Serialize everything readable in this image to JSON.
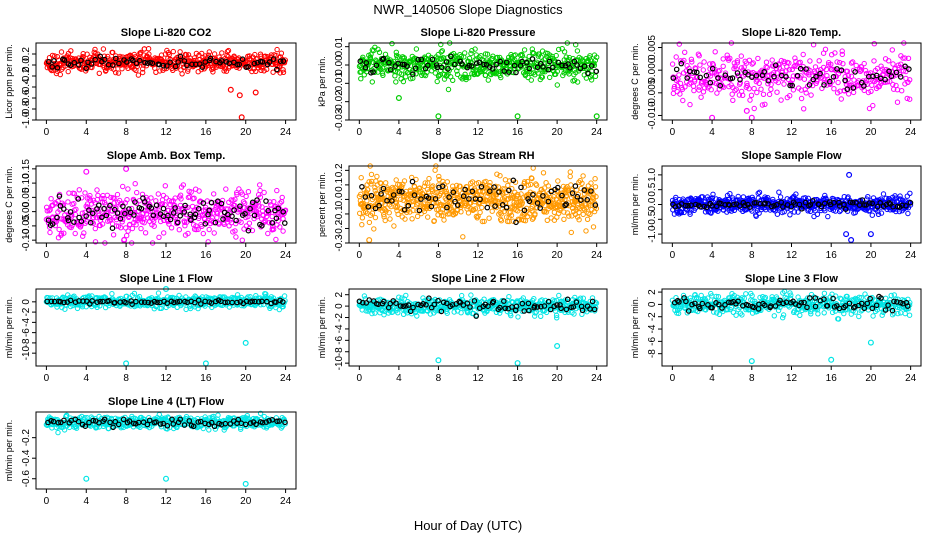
{
  "figure": {
    "title": "NWR_140506  Slope Diagnostics",
    "xlabel": "Hour of Day (UTC)"
  },
  "chart_data": [
    {
      "type": "scatter",
      "title": "Slope Li-820 CO2",
      "ylabel": "Licor ppm per min.",
      "color": "#ff0000",
      "xlim": [
        0,
        24
      ],
      "ylim": [
        -1.0,
        0.4
      ],
      "xticks": [
        0,
        4,
        8,
        12,
        16,
        20,
        24
      ],
      "yticks": [
        -1.0,
        -0.8,
        -0.6,
        -0.4,
        -0.2,
        0.0,
        0.2
      ],
      "ytick_labels": [
        "-1.0",
        "-0.8",
        "-0.6",
        "-0.4",
        "-0.2",
        "0.0",
        "0.2"
      ],
      "center": 0.05,
      "spread": 0.09,
      "black_spread": 0.05,
      "n": 520,
      "nblack": 70,
      "outliers": [
        {
          "x": 19.6,
          "y": -0.95
        },
        {
          "x": 19.4,
          "y": -0.55
        },
        {
          "x": 18.5,
          "y": -0.45
        },
        {
          "x": 21.0,
          "y": -0.5
        }
      ]
    },
    {
      "type": "scatter",
      "title": "Slope Li-820 Pressure",
      "ylabel": "kPa per min.",
      "color": "#00cc00",
      "xlim": [
        0,
        24
      ],
      "ylim": [
        -0.03,
        0.012
      ],
      "xticks": [
        0,
        4,
        8,
        12,
        16,
        20,
        24
      ],
      "yticks": [
        -0.03,
        -0.02,
        -0.01,
        0.0,
        0.01
      ],
      "ytick_labels": [
        "-0.03",
        "-0.02",
        "-0.01",
        "0.00",
        "0.01"
      ],
      "center": 0.0,
      "spread": 0.004,
      "black_spread": 0.002,
      "n": 560,
      "nblack": 70,
      "outliers": [
        {
          "x": 8.0,
          "y": -0.028
        },
        {
          "x": 16.0,
          "y": -0.028
        },
        {
          "x": 24.0,
          "y": -0.028
        },
        {
          "x": 4.0,
          "y": -0.018
        }
      ]
    },
    {
      "type": "scatter",
      "title": "Slope Li-820 Temp.",
      "ylabel": "degrees C per min.",
      "color": "#ff00ff",
      "xlim": [
        0,
        24
      ],
      "ylim": [
        -0.011,
        0.006
      ],
      "xticks": [
        0,
        4,
        8,
        12,
        16,
        20,
        24
      ],
      "yticks": [
        -0.01,
        -0.005,
        0.0,
        0.005
      ],
      "ytick_labels": [
        "-0.010",
        "-0.005",
        "0.000",
        "0.005"
      ],
      "center": -0.0015,
      "spread": 0.0028,
      "black_spread": 0.0015,
      "n": 420,
      "nblack": 60,
      "outliers": [
        {
          "x": 4.0,
          "y": -0.0105
        },
        {
          "x": 8.0,
          "y": -0.0105
        },
        {
          "x": 7.5,
          "y": -0.009
        }
      ]
    },
    {
      "type": "scatter",
      "title": "Slope Amb. Box Temp.",
      "ylabel": "degrees C per min.",
      "color": "#ff00ff",
      "xlim": [
        0,
        24
      ],
      "ylim": [
        -0.11,
        0.16
      ],
      "xticks": [
        0,
        4,
        8,
        12,
        16,
        20,
        24
      ],
      "yticks": [
        -0.1,
        -0.05,
        0.0,
        0.05,
        0.1,
        0.15
      ],
      "ytick_labels": [
        "-0.10",
        "-0.05",
        "0.00",
        "0.05",
        "0.10",
        "0.15"
      ],
      "center": 0.0,
      "spread": 0.04,
      "black_spread": 0.03,
      "n": 520,
      "nblack": 90,
      "outliers": [
        {
          "x": 7.8,
          "y": -0.1
        },
        {
          "x": 8.0,
          "y": 0.15
        },
        {
          "x": 4.0,
          "y": 0.14
        }
      ]
    },
    {
      "type": "scatter",
      "title": "Slope Gas Stream RH",
      "ylabel": "percent per min.",
      "color": "#ff9900",
      "xlim": [
        0,
        24
      ],
      "ylim": [
        -0.3,
        0.23
      ],
      "xticks": [
        0,
        4,
        8,
        12,
        16,
        20,
        24
      ],
      "yticks": [
        -0.3,
        -0.2,
        -0.1,
        0.0,
        0.1,
        0.2
      ],
      "ytick_labels": [
        "-0.3",
        "-0.2",
        "-0.1",
        "0.0",
        "0.1",
        "0.2"
      ],
      "center": 0.0,
      "spread": 0.08,
      "black_spread": 0.05,
      "n": 700,
      "nblack": 70,
      "outliers": [
        {
          "x": 1.0,
          "y": -0.28
        }
      ]
    },
    {
      "type": "scatter",
      "title": "Slope Sample Flow",
      "ylabel": "ml/min per min.",
      "color": "#0000ff",
      "xlim": [
        0,
        24
      ],
      "ylim": [
        -1.3,
        1.3
      ],
      "xticks": [
        0,
        4,
        8,
        12,
        16,
        20,
        24
      ],
      "yticks": [
        -1.0,
        -0.5,
        0.0,
        0.5,
        1.0
      ],
      "ytick_labels": [
        "-1.0",
        "-0.5",
        "0.0",
        "0.5",
        "1.0"
      ],
      "center": 0.0,
      "spread": 0.14,
      "black_spread": 0.06,
      "n": 620,
      "nblack": 80,
      "outliers": [
        {
          "x": 17.8,
          "y": 1.0
        },
        {
          "x": 17.5,
          "y": -1.0
        },
        {
          "x": 18.0,
          "y": -1.2
        },
        {
          "x": 20.0,
          "y": -1.0
        }
      ]
    },
    {
      "type": "scatter",
      "title": "Slope Line 1 Flow",
      "ylabel": "ml/min per min.",
      "color": "#00e5e5",
      "xlim": [
        0,
        24
      ],
      "ylim": [
        -12.5,
        2.5
      ],
      "xticks": [
        0,
        4,
        8,
        12,
        16,
        20,
        24
      ],
      "yticks": [
        -10,
        -8,
        -6,
        -4,
        -2,
        0
      ],
      "ytick_labels": [
        "-10",
        "-8",
        "-6",
        "-4",
        "-2",
        "0"
      ],
      "center": 0.0,
      "spread": 0.6,
      "black_spread": 0.15,
      "n": 480,
      "nblack": 70,
      "outliers": [
        {
          "x": 8.0,
          "y": -12.0
        },
        {
          "x": 16.0,
          "y": -12.0
        },
        {
          "x": 20.0,
          "y": -8.0
        },
        {
          "x": 12.0,
          "y": 2.5
        }
      ]
    },
    {
      "type": "scatter",
      "title": "Slope Line 2 Flow",
      "ylabel": "ml/min per min.",
      "color": "#00e5e5",
      "xlim": [
        0,
        24
      ],
      "ylim": [
        -10.5,
        3.0
      ],
      "xticks": [
        0,
        4,
        8,
        12,
        16,
        20,
        24
      ],
      "yticks": [
        -10,
        -8,
        -6,
        -4,
        -2,
        0,
        2
      ],
      "ytick_labels": [
        "-10",
        "-8",
        "-6",
        "-4",
        "-2",
        "0",
        "2"
      ],
      "center": 0.0,
      "spread": 0.7,
      "black_spread": 0.5,
      "n": 480,
      "nblack": 80,
      "outliers": [
        {
          "x": 8.0,
          "y": -9.5
        },
        {
          "x": 16.0,
          "y": -10.0
        },
        {
          "x": 20.0,
          "y": -7.0
        }
      ]
    },
    {
      "type": "scatter",
      "title": "Slope Line 3 Flow",
      "ylabel": "ml/min per min.",
      "color": "#00e5e5",
      "xlim": [
        0,
        24
      ],
      "ylim": [
        -10.0,
        2.5
      ],
      "xticks": [
        0,
        4,
        8,
        12,
        16,
        20,
        24
      ],
      "yticks": [
        -8,
        -6,
        -4,
        -2,
        0,
        2
      ],
      "ytick_labels": [
        "-8",
        "-6",
        "-4",
        "-2",
        "0",
        "2"
      ],
      "center": 0.0,
      "spread": 0.8,
      "black_spread": 0.5,
      "n": 480,
      "nblack": 80,
      "outliers": [
        {
          "x": 8.0,
          "y": -9.2
        },
        {
          "x": 16.0,
          "y": -9.0
        },
        {
          "x": 20.0,
          "y": -6.2
        }
      ]
    },
    {
      "type": "scatter",
      "title": "Slope Line 4 (LT) Flow",
      "ylabel": "ml/min per min.",
      "color": "#00e5e5",
      "xlim": [
        0,
        24
      ],
      "ylim": [
        -0.7,
        0.05
      ],
      "xticks": [
        0,
        4,
        8,
        12,
        16,
        20,
        24
      ],
      "yticks": [
        -0.6,
        -0.4,
        -0.2
      ],
      "ytick_labels": [
        "-0.6",
        "-0.4",
        "-0.2"
      ],
      "center": -0.05,
      "spread": 0.03,
      "black_spread": 0.02,
      "n": 480,
      "nblack": 70,
      "outliers": [
        {
          "x": 4.0,
          "y": -0.6
        },
        {
          "x": 12.0,
          "y": -0.6
        },
        {
          "x": 20.0,
          "y": -0.65
        }
      ]
    }
  ]
}
